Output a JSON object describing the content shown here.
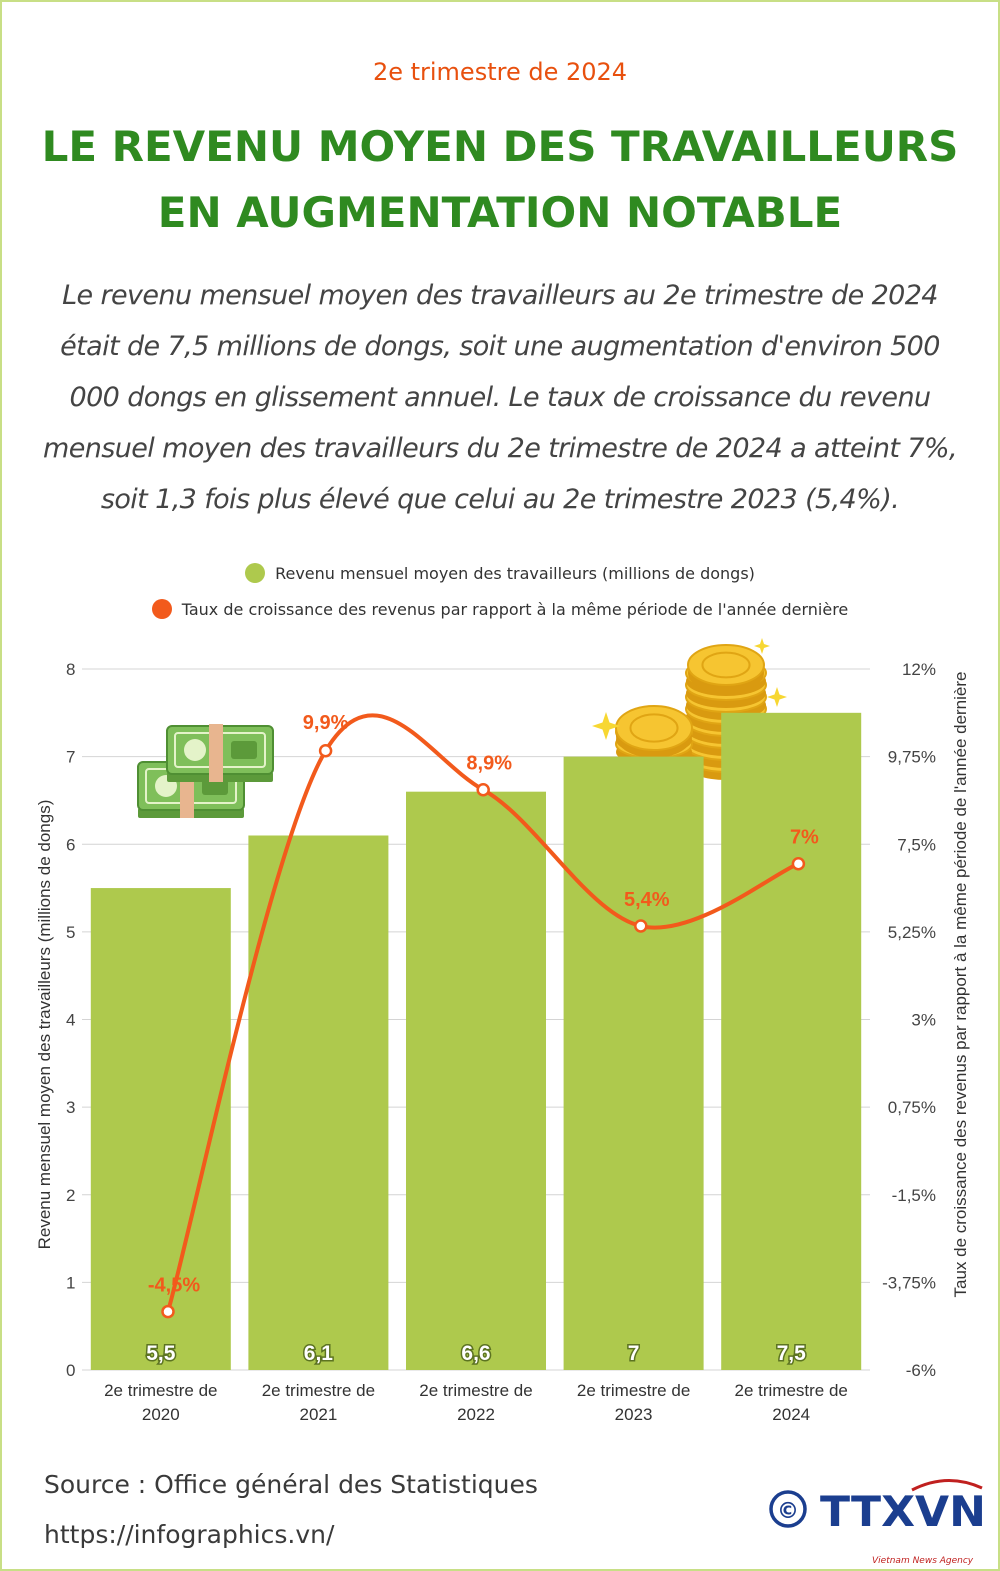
{
  "header": {
    "subtitle": "2e trimestre de 2024",
    "title_lines": [
      "LE REVENU MOYEN DES TRAVAILLEURS",
      "EN AUGMENTATION NOTABLE"
    ]
  },
  "intro_lines": [
    "Le revenu mensuel moyen des travailleurs au 2e trimestre de 2024",
    "était de 7,5 millions de dongs, soit une augmentation d'environ 500",
    "000 dongs en glissement annuel. Le taux de croissance du revenu",
    "mensuel moyen des travailleurs du 2e trimestre de 2024 a atteint 7%,",
    "soit 1,3 fois plus élevé que celui au 2e trimestre 2023 (5,4%)."
  ],
  "colors": {
    "bar": "#aec94d",
    "line": "#f25a1c",
    "label_orange": "#f25a1c",
    "title_green": "#2f8a20",
    "subtitle_orange": "#e8500e"
  },
  "chart_data": {
    "type": "bar",
    "categories": [
      "2e trimestre de 2020",
      "2e trimestre de 2021",
      "2e trimestre de 2022",
      "2e trimestre de 2023",
      "2e trimestre de 2024"
    ],
    "category_lines": [
      [
        "2e trimestre de",
        "2020"
      ],
      [
        "2e trimestre de",
        "2021"
      ],
      [
        "2e trimestre de",
        "2022"
      ],
      [
        "2e trimestre de",
        "2023"
      ],
      [
        "2e trimestre de",
        "2024"
      ]
    ],
    "series": [
      {
        "name": "Revenu mensuel moyen des travailleurs (millions de dongs)",
        "type": "bar",
        "axis": "left",
        "values": [
          5.5,
          6.1,
          6.6,
          7,
          7.5
        ],
        "labels": [
          "5,5",
          "6,1",
          "6,6",
          "7",
          "7,5"
        ]
      },
      {
        "name": "Taux de croissance des revenus par rapport à la même période de l'année dernière",
        "type": "line",
        "axis": "right",
        "values": [
          -4.5,
          9.9,
          8.9,
          5.4,
          7
        ],
        "labels": [
          "-4,5%",
          "9,9%",
          "8,9%",
          "5,4%",
          "7%"
        ]
      }
    ],
    "y_left": {
      "label": "Revenu mensuel moyen des travailleurs (millions de dongs)",
      "range": [
        0,
        8
      ],
      "ticks": [
        0,
        1,
        2,
        3,
        4,
        5,
        6,
        7,
        8
      ],
      "tick_labels": [
        "0",
        "1",
        "2",
        "3",
        "4",
        "5",
        "6",
        "7",
        "8"
      ]
    },
    "y_right": {
      "label": "Taux de croissance des revenus par rapport à la même période de l'année dernière",
      "range": [
        -6,
        12
      ],
      "ticks": [
        -6,
        -3.75,
        -1.5,
        0.75,
        3,
        5.25,
        7.5,
        9.75,
        12
      ],
      "tick_labels": [
        "-6%",
        "-3,75%",
        "-1,5%",
        "0,75%",
        "3%",
        "5,25%",
        "7,5%",
        "9,75%",
        "12%"
      ]
    },
    "grid": true,
    "legend_position": "top"
  },
  "footer": {
    "source": "Source : Office général des Statistiques",
    "url": "https://infographics.vn/",
    "logo_text": "TTXVN",
    "copyright_symbol": "©",
    "agency_tagline": "Vietnam News Agency"
  }
}
